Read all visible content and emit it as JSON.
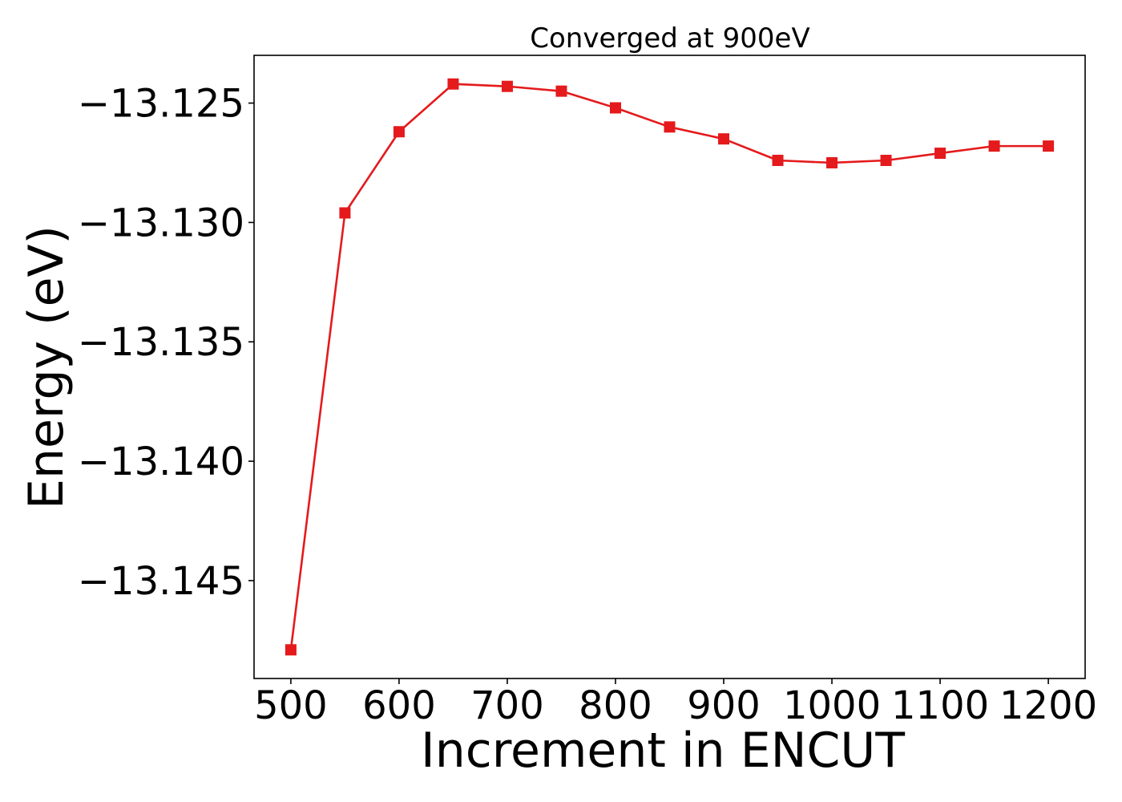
{
  "chart_data": {
    "type": "line",
    "title": "Converged at 900eV",
    "xlabel": "Increment in ENCUT",
    "ylabel": "Energy (eV)",
    "xlim": [
      466,
      1234
    ],
    "ylim": [
      -13.1491,
      -13.123
    ],
    "grid": false,
    "x_ticks": [
      500,
      600,
      700,
      800,
      900,
      1000,
      1100,
      1200
    ],
    "x_tick_labels": [
      "500",
      "600",
      "700",
      "800",
      "900",
      "1000",
      "1100",
      "1200"
    ],
    "y_ticks": [
      -13.125,
      -13.13,
      -13.135,
      -13.14,
      -13.145
    ],
    "y_tick_labels": [
      "−13.125",
      "−13.130",
      "−13.135",
      "−13.140",
      "−13.145"
    ],
    "series": [
      {
        "color": "#e41a1c",
        "marker": "square",
        "x": [
          500,
          550,
          600,
          650,
          700,
          750,
          800,
          850,
          900,
          950,
          1000,
          1050,
          1100,
          1150,
          1200
        ],
        "y": [
          -13.1479,
          -13.1296,
          -13.1262,
          -13.1242,
          -13.1243,
          -13.1245,
          -13.1252,
          -13.126,
          -13.1265,
          -13.1274,
          -13.1275,
          -13.1274,
          -13.1271,
          -13.1268,
          -13.1268
        ]
      }
    ]
  }
}
